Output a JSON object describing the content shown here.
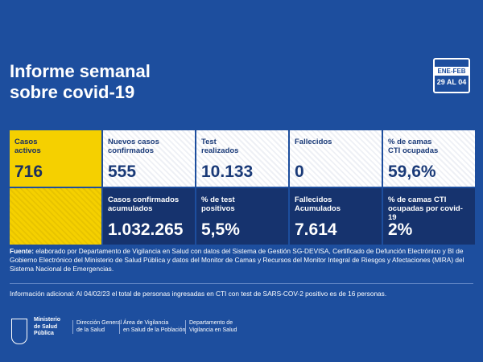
{
  "header": {
    "title": [
      "Informe semanal",
      "sobre covid-19"
    ],
    "calendar": {
      "month": "ENE-FEB",
      "days": "29 AL 04"
    }
  },
  "cards": [
    {
      "label": [
        "Casos",
        "activos"
      ],
      "value": "716",
      "style": "yellow"
    },
    {
      "label": [
        "Nuevos casos",
        "confirmados"
      ],
      "value": "555",
      "style": "light"
    },
    {
      "label": [
        "Test",
        "realizados"
      ],
      "value": "10.133",
      "style": "light"
    },
    {
      "label": [
        "Fallecidos"
      ],
      "value": "0",
      "style": "light"
    },
    {
      "label": [
        "% de camas",
        "CTI ocupadas"
      ],
      "value": "59,6%",
      "style": "light"
    },
    {
      "label": [
        "Casos confirmados",
        "acumulados"
      ],
      "value": "1.032.265",
      "style": "dark"
    },
    {
      "label": [
        "% de test",
        "positivos"
      ],
      "value": "5,5%",
      "style": "dark"
    },
    {
      "label": [
        "Fallecidos",
        "Acumulados"
      ],
      "value": "7.614",
      "style": "dark"
    },
    {
      "label": [
        "% de camas CTI",
        "ocupadas por covid-19"
      ],
      "value": "2%",
      "style": "dark"
    }
  ],
  "source": {
    "label": "Fuente:",
    "text": "elaborado por Departamento de Vigilancia en Salud con datos del Sistema de Gestión SG-DEVISA, Certificado de Defunción Electrónico y BI de Gobierno Electrónico del Ministerio de Salud Pública y datos del Monitor de Camas y Recursos del Monitor  Integral de Riesgos y Afectaciones (MIRA) del Sistema Nacional de Emergencias."
  },
  "additional": "Información adicional: Al 04/02/23 el total de personas ingresadas en CTI con test de SARS-COV-2 positivo es de 16 personas.",
  "logos": [
    [
      "Ministerio",
      "de Salud",
      "Pública"
    ],
    [
      "Dirección General",
      "de la Salud"
    ],
    [
      "Área de Vigilancia",
      "en Salud de la Población"
    ],
    [
      "Departamento de",
      "Vigilancia en Salud"
    ]
  ]
}
